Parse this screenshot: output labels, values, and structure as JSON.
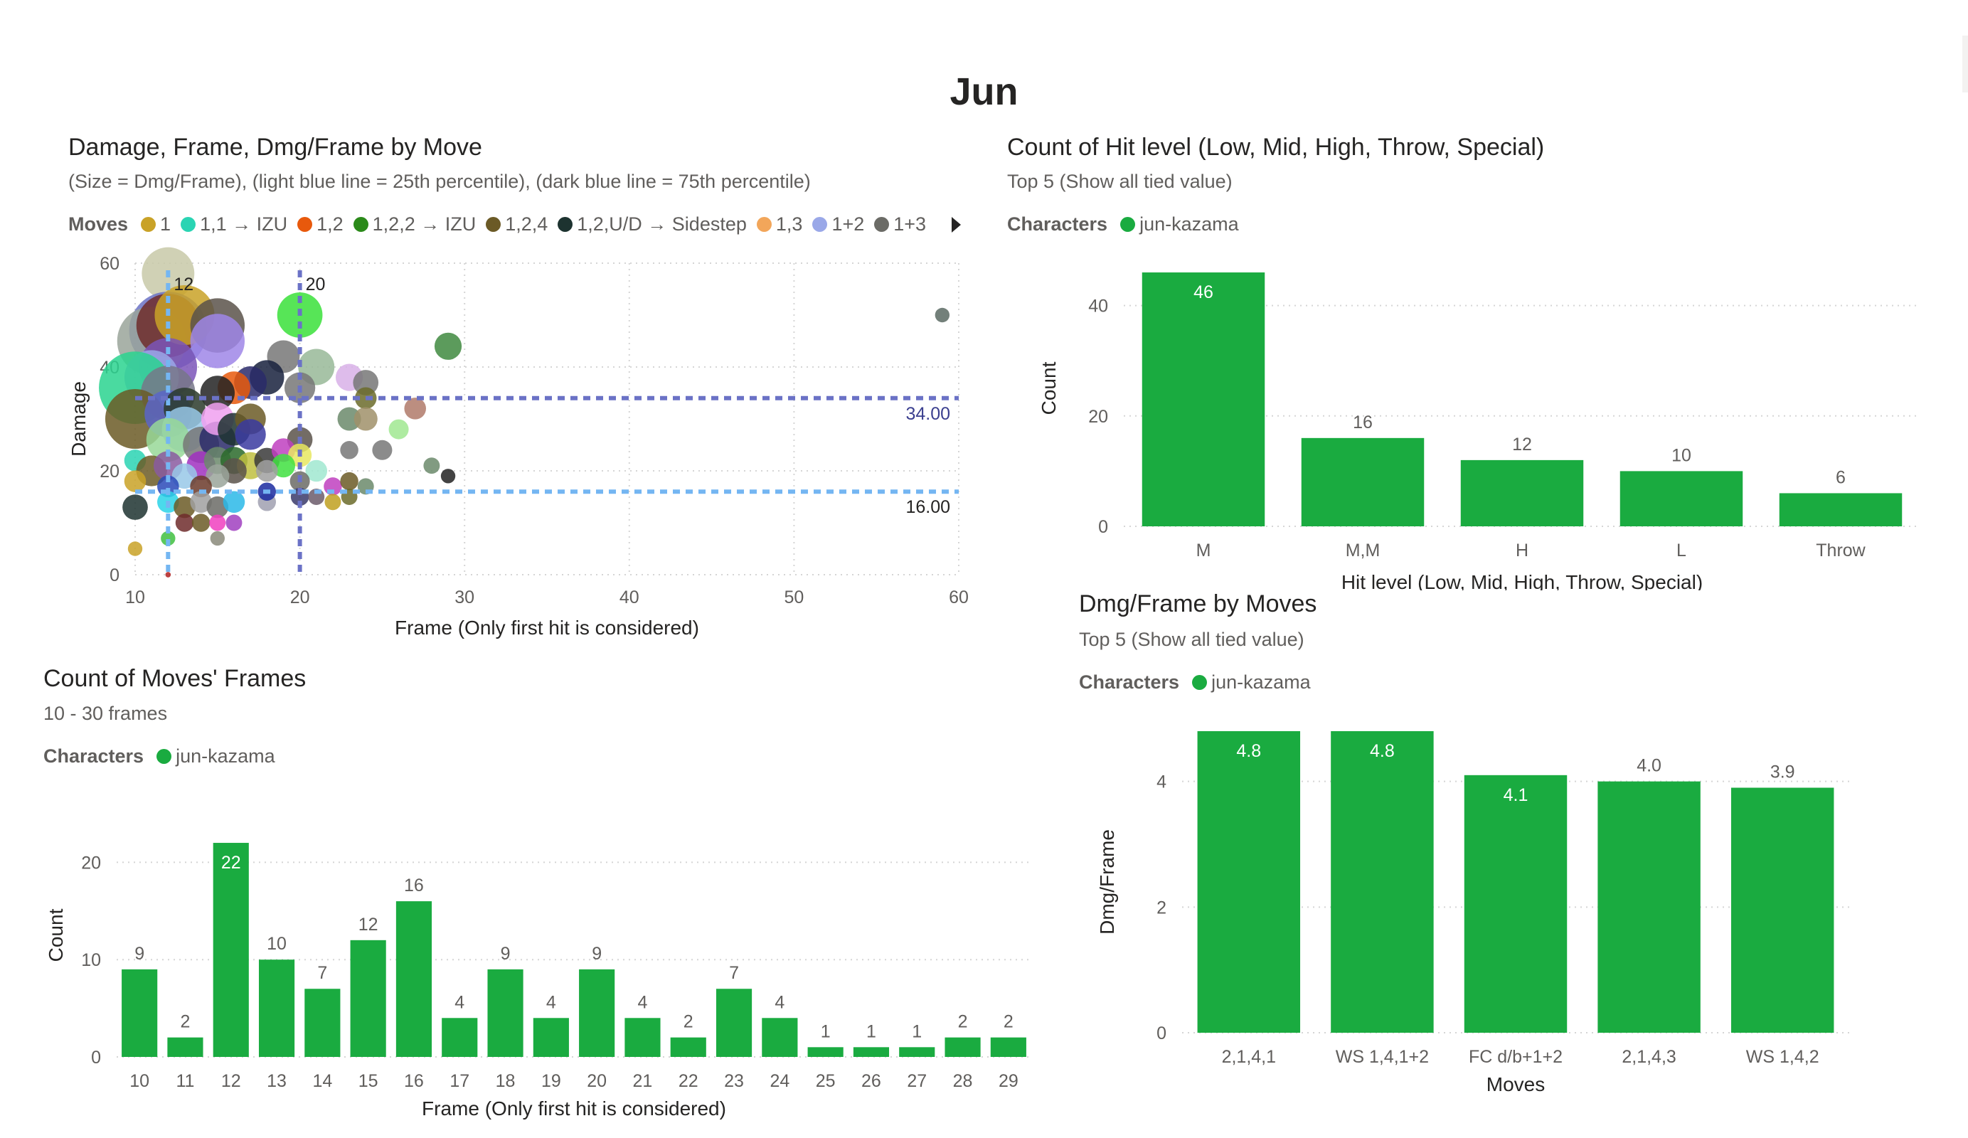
{
  "page": {
    "title": "Jun"
  },
  "scatter": {
    "title": "Damage, Frame, Dmg/Frame by Move",
    "subtitle": "(Size = Dmg/Frame), (light blue line = 25th percentile), (dark blue line = 75th percentile)",
    "legend_title": "Moves",
    "legend_items": [
      {
        "label": "1",
        "color": "#c9a227"
      },
      {
        "label": "1,1 → IZU",
        "color": "#2ad4b3"
      },
      {
        "label": "1,2",
        "color": "#e8590c"
      },
      {
        "label": "1,2,2 → IZU",
        "color": "#2b8a1a"
      },
      {
        "label": "1,2,4",
        "color": "#6b5a26"
      },
      {
        "label": "1,2,U/D → Sidestep",
        "color": "#1d3330"
      },
      {
        "label": "1,3",
        "color": "#f2a65a"
      },
      {
        "label": "1+2",
        "color": "#9aa8e8"
      },
      {
        "label": "1+3",
        "color": "#6b6b66"
      }
    ]
  },
  "hitlevel": {
    "title": "Count of Hit level (Low, Mid, High, Throw, Special)",
    "subtitle": "Top 5 (Show all tied value)",
    "legend_title": "Characters",
    "legend_item": "jun-kazama",
    "legend_color": "#1aab40"
  },
  "frames": {
    "title": "Count of Moves' Frames",
    "subtitle": "10 - 30 frames",
    "legend_title": "Characters",
    "legend_item": "jun-kazama",
    "legend_color": "#1aab40"
  },
  "dmgframe": {
    "title": "Dmg/Frame by Moves",
    "subtitle": "Top 5 (Show all tied value)",
    "legend_title": "Characters",
    "legend_item": "jun-kazama",
    "legend_color": "#1aab40"
  },
  "chart_data": [
    {
      "type": "scatter",
      "xlabel": "Frame (Only first hit is considered)",
      "ylabel": "Damage",
      "xlim": [
        10,
        60
      ],
      "ylim": [
        0,
        60
      ],
      "xticks": [
        10,
        20,
        30,
        40,
        50,
        60
      ],
      "yticks": [
        0,
        20,
        40,
        60
      ],
      "reference_lines": [
        {
          "axis": "x",
          "value": 12,
          "label": "12",
          "color": "#74b6f2"
        },
        {
          "axis": "x",
          "value": 20,
          "label": "20",
          "color": "#6b72c6"
        },
        {
          "axis": "y",
          "value": 34,
          "label": "34.00",
          "color": "#6b72c6"
        },
        {
          "axis": "y",
          "value": 16,
          "label": "16.00",
          "color": "#74b6f2"
        }
      ],
      "points": [
        {
          "x": 12,
          "y": 58,
          "r": 2.9,
          "c": "#c8c9a8"
        },
        {
          "x": 12,
          "y": 47,
          "r": 4.3,
          "c": "#6b72c6"
        },
        {
          "x": 11,
          "y": 45,
          "r": 3.8,
          "c": "#9aa59a"
        },
        {
          "x": 12,
          "y": 48,
          "r": 3.5,
          "c": "#6e2b2b"
        },
        {
          "x": 13,
          "y": 50,
          "r": 3.3,
          "c": "#c9a227"
        },
        {
          "x": 15,
          "y": 48,
          "r": 3.0,
          "c": "#5a524a"
        },
        {
          "x": 15,
          "y": 45,
          "r": 3.0,
          "c": "#9f86e8"
        },
        {
          "x": 20,
          "y": 50,
          "r": 2.5,
          "c": "#3ae03a"
        },
        {
          "x": 59,
          "y": 50,
          "r": 0.8,
          "c": "#5a6a63"
        },
        {
          "x": 29,
          "y": 44,
          "r": 1.5,
          "c": "#3f8a3f"
        },
        {
          "x": 12,
          "y": 40,
          "r": 3.2,
          "c": "#7b55b8"
        },
        {
          "x": 11,
          "y": 38,
          "r": 3.0,
          "c": "#9aa8e8"
        },
        {
          "x": 10,
          "y": 36,
          "r": 4.0,
          "c": "#2ad48f"
        },
        {
          "x": 12,
          "y": 35,
          "r": 3.0,
          "c": "#777788"
        },
        {
          "x": 21,
          "y": 40,
          "r": 2.0,
          "c": "#98b898"
        },
        {
          "x": 19,
          "y": 42,
          "r": 1.8,
          "c": "#777777"
        },
        {
          "x": 18,
          "y": 38,
          "r": 1.9,
          "c": "#17213d"
        },
        {
          "x": 17,
          "y": 37,
          "r": 1.8,
          "c": "#2a2a6a"
        },
        {
          "x": 16,
          "y": 36,
          "r": 1.8,
          "c": "#e8590c"
        },
        {
          "x": 15,
          "y": 35,
          "r": 1.9,
          "c": "#222222"
        },
        {
          "x": 20,
          "y": 36,
          "r": 1.7,
          "c": "#777777"
        },
        {
          "x": 23,
          "y": 38,
          "r": 1.5,
          "c": "#d8b0e8"
        },
        {
          "x": 24,
          "y": 37,
          "r": 1.4,
          "c": "#777777"
        },
        {
          "x": 24,
          "y": 34,
          "r": 1.2,
          "c": "#6b6b2a"
        },
        {
          "x": 10,
          "y": 30,
          "r": 3.3,
          "c": "#6b5a26"
        },
        {
          "x": 12,
          "y": 31,
          "r": 2.6,
          "c": "#5a65c8"
        },
        {
          "x": 13,
          "y": 32,
          "r": 2.3,
          "c": "#2a3a2a"
        },
        {
          "x": 13,
          "y": 28,
          "r": 2.5,
          "c": "#98c8e8"
        },
        {
          "x": 12,
          "y": 26,
          "r": 2.4,
          "c": "#98d898"
        },
        {
          "x": 14,
          "y": 25,
          "r": 2.0,
          "c": "#777777"
        },
        {
          "x": 15,
          "y": 26,
          "r": 2.0,
          "c": "#2a2a6a"
        },
        {
          "x": 15,
          "y": 30,
          "r": 1.8,
          "c": "#f0a0f0"
        },
        {
          "x": 16,
          "y": 28,
          "r": 1.8,
          "c": "#1d3330"
        },
        {
          "x": 17,
          "y": 30,
          "r": 1.7,
          "c": "#6b5a26"
        },
        {
          "x": 17,
          "y": 27,
          "r": 1.7,
          "c": "#3a3aa0"
        },
        {
          "x": 20,
          "y": 26,
          "r": 1.4,
          "c": "#5a524a"
        },
        {
          "x": 23,
          "y": 30,
          "r": 1.3,
          "c": "#6b8a6b"
        },
        {
          "x": 24,
          "y": 30,
          "r": 1.3,
          "c": "#a0906a"
        },
        {
          "x": 26,
          "y": 28,
          "r": 1.1,
          "c": "#a0e890"
        },
        {
          "x": 27,
          "y": 32,
          "r": 1.2,
          "c": "#b07a6a"
        },
        {
          "x": 23,
          "y": 24,
          "r": 1.0,
          "c": "#777777"
        },
        {
          "x": 25,
          "y": 24,
          "r": 1.1,
          "c": "#777777"
        },
        {
          "x": 10,
          "y": 22,
          "r": 1.2,
          "c": "#2ad4b3"
        },
        {
          "x": 11,
          "y": 20,
          "r": 1.7,
          "c": "#6b5a26"
        },
        {
          "x": 12,
          "y": 21,
          "r": 1.6,
          "c": "#8a5aa0"
        },
        {
          "x": 14,
          "y": 21,
          "r": 1.6,
          "c": "#a030c0"
        },
        {
          "x": 15,
          "y": 22,
          "r": 1.5,
          "c": "#6b8a6b"
        },
        {
          "x": 16,
          "y": 22,
          "r": 1.5,
          "c": "#2a6a2a"
        },
        {
          "x": 17,
          "y": 21,
          "r": 1.5,
          "c": "#c0c040"
        },
        {
          "x": 18,
          "y": 22,
          "r": 1.4,
          "c": "#3a3a3a"
        },
        {
          "x": 19,
          "y": 24,
          "r": 1.3,
          "c": "#c040c0"
        },
        {
          "x": 20,
          "y": 23,
          "r": 1.3,
          "c": "#e8e860"
        },
        {
          "x": 21,
          "y": 20,
          "r": 1.2,
          "c": "#a0e8d0"
        },
        {
          "x": 19,
          "y": 21,
          "r": 1.3,
          "c": "#40e040"
        },
        {
          "x": 18,
          "y": 20,
          "r": 1.2,
          "c": "#a0a0a0"
        },
        {
          "x": 16,
          "y": 20,
          "r": 1.4,
          "c": "#5a524a"
        },
        {
          "x": 15,
          "y": 19,
          "r": 1.3,
          "c": "#9aa59a"
        },
        {
          "x": 13,
          "y": 19,
          "r": 1.4,
          "c": "#98c8e8"
        },
        {
          "x": 10,
          "y": 18,
          "r": 1.2,
          "c": "#c9a227"
        },
        {
          "x": 12,
          "y": 17,
          "r": 1.2,
          "c": "#2a4ab8"
        },
        {
          "x": 14,
          "y": 17,
          "r": 1.2,
          "c": "#6b3a2a"
        },
        {
          "x": 20,
          "y": 18,
          "r": 1.1,
          "c": "#6b6b66"
        },
        {
          "x": 22,
          "y": 17,
          "r": 1.0,
          "c": "#c040c0"
        },
        {
          "x": 23,
          "y": 18,
          "r": 1.0,
          "c": "#6b5a26"
        },
        {
          "x": 24,
          "y": 17,
          "r": 0.9,
          "c": "#6b8a6b"
        },
        {
          "x": 28,
          "y": 21,
          "r": 0.9,
          "c": "#6b8a6b"
        },
        {
          "x": 29,
          "y": 19,
          "r": 0.8,
          "c": "#222222"
        },
        {
          "x": 10,
          "y": 13,
          "r": 1.4,
          "c": "#1d3330"
        },
        {
          "x": 12,
          "y": 14,
          "r": 1.2,
          "c": "#2ad4e8"
        },
        {
          "x": 13,
          "y": 13,
          "r": 1.2,
          "c": "#6b5a26"
        },
        {
          "x": 14,
          "y": 14,
          "r": 1.2,
          "c": "#a0a0a0"
        },
        {
          "x": 15,
          "y": 13,
          "r": 1.2,
          "c": "#6b6b66"
        },
        {
          "x": 16,
          "y": 14,
          "r": 1.2,
          "c": "#2ab8e8"
        },
        {
          "x": 18,
          "y": 14,
          "r": 1.0,
          "c": "#a0a0b0"
        },
        {
          "x": 18,
          "y": 16,
          "r": 1.0,
          "c": "#1a2aa0"
        },
        {
          "x": 20,
          "y": 15,
          "r": 1.0,
          "c": "#3a3a6a"
        },
        {
          "x": 21,
          "y": 15,
          "r": 0.9,
          "c": "#6b5a6a"
        },
        {
          "x": 22,
          "y": 14,
          "r": 0.9,
          "c": "#c0a020"
        },
        {
          "x": 23,
          "y": 15,
          "r": 0.9,
          "c": "#6b6b2a"
        },
        {
          "x": 13,
          "y": 10,
          "r": 1.0,
          "c": "#6e2b2b"
        },
        {
          "x": 14,
          "y": 10,
          "r": 1.0,
          "c": "#6b5a26"
        },
        {
          "x": 15,
          "y": 10,
          "r": 0.9,
          "c": "#f040c0"
        },
        {
          "x": 16,
          "y": 10,
          "r": 0.9,
          "c": "#a040c0"
        },
        {
          "x": 15,
          "y": 7,
          "r": 0.8,
          "c": "#8a8a7a"
        },
        {
          "x": 12,
          "y": 7,
          "r": 0.8,
          "c": "#40c040"
        },
        {
          "x": 10,
          "y": 5,
          "r": 0.8,
          "c": "#c9a227"
        },
        {
          "x": 12,
          "y": 0,
          "r": 0.3,
          "c": "#b02020"
        }
      ]
    },
    {
      "type": "bar",
      "xlabel": "Hit level (Low, Mid, High, Throw, Special)",
      "ylabel": "Count",
      "ylim": [
        0,
        50
      ],
      "yticks": [
        0,
        20,
        40
      ],
      "categories": [
        "M",
        "M,M",
        "H",
        "L",
        "Throw"
      ],
      "values": [
        46,
        16,
        12,
        10,
        6
      ],
      "color": "#1aab40"
    },
    {
      "type": "bar",
      "xlabel": "Frame (Only first hit is considered)",
      "ylabel": "Count",
      "ylim": [
        0,
        25
      ],
      "yticks": [
        0,
        10,
        20
      ],
      "categories": [
        "10",
        "11",
        "12",
        "13",
        "14",
        "15",
        "16",
        "17",
        "18",
        "19",
        "20",
        "21",
        "22",
        "23",
        "24",
        "25",
        "26",
        "27",
        "28",
        "29"
      ],
      "values": [
        9,
        2,
        22,
        10,
        7,
        12,
        16,
        4,
        9,
        4,
        9,
        4,
        2,
        7,
        4,
        1,
        1,
        1,
        2,
        2
      ],
      "color": "#1aab40"
    },
    {
      "type": "bar",
      "xlabel": "Moves",
      "ylabel": "Dmg/Frame",
      "ylim": [
        0,
        4.8
      ],
      "yticks": [
        0,
        2,
        4
      ],
      "categories": [
        "2,1,4,1",
        "WS 1,4,1+2",
        "FC d/b+1+2",
        "2,1,4,3",
        "WS 1,4,2"
      ],
      "values": [
        4.8,
        4.8,
        4.1,
        4.0,
        3.9
      ],
      "labels": [
        "4.8",
        "4.8",
        "4.1",
        "4.0",
        "3.9"
      ],
      "color": "#1aab40"
    }
  ]
}
